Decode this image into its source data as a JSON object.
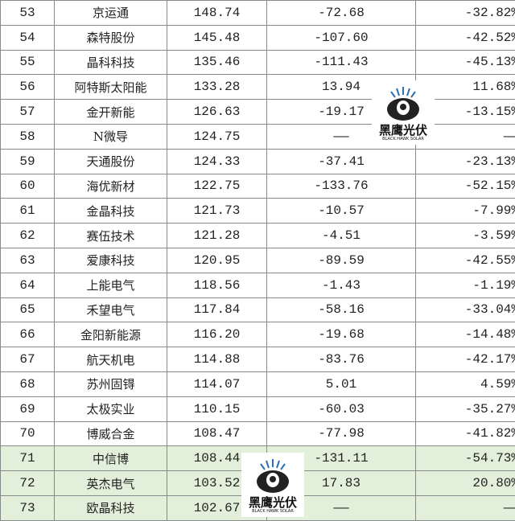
{
  "rows": [
    {
      "rank": "53",
      "name": "京运通",
      "value": "148.74",
      "change": "-72.68",
      "pct": "-32.82%"
    },
    {
      "rank": "54",
      "name": "森特股份",
      "value": "145.48",
      "change": "-107.60",
      "pct": "-42.52%"
    },
    {
      "rank": "55",
      "name": "晶科科技",
      "value": "135.46",
      "change": "-111.43",
      "pct": "-45.13%"
    },
    {
      "rank": "56",
      "name": "阿特斯太阳能",
      "value": "133.28",
      "change": "13.94",
      "pct": "11.68%"
    },
    {
      "rank": "57",
      "name": "金开新能",
      "value": "126.63",
      "change": "-19.17",
      "pct": "-13.15%"
    },
    {
      "rank": "58",
      "name": "N微导",
      "value": "124.75",
      "change": "——",
      "pct": "——"
    },
    {
      "rank": "59",
      "name": "天通股份",
      "value": "124.33",
      "change": "-37.41",
      "pct": "-23.13%"
    },
    {
      "rank": "60",
      "name": "海优新材",
      "value": "122.75",
      "change": "-133.76",
      "pct": "-52.15%"
    },
    {
      "rank": "61",
      "name": "金晶科技",
      "value": "121.73",
      "change": "-10.57",
      "pct": "-7.99%"
    },
    {
      "rank": "62",
      "name": "赛伍技术",
      "value": "121.28",
      "change": "-4.51",
      "pct": "-3.59%"
    },
    {
      "rank": "63",
      "name": "爱康科技",
      "value": "120.95",
      "change": "-89.59",
      "pct": "-42.55%"
    },
    {
      "rank": "64",
      "name": "上能电气",
      "value": "118.56",
      "change": "-1.43",
      "pct": "-1.19%"
    },
    {
      "rank": "65",
      "name": "禾望电气",
      "value": "117.84",
      "change": "-58.16",
      "pct": "-33.04%"
    },
    {
      "rank": "66",
      "name": "金阳新能源",
      "value": "116.20",
      "change": "-19.68",
      "pct": "-14.48%"
    },
    {
      "rank": "67",
      "name": "航天机电",
      "value": "114.88",
      "change": "-83.76",
      "pct": "-42.17%"
    },
    {
      "rank": "68",
      "name": "苏州固锝",
      "value": "114.07",
      "change": "5.01",
      "pct": "4.59%"
    },
    {
      "rank": "69",
      "name": "太极实业",
      "value": "110.15",
      "change": "-60.03",
      "pct": "-35.27%"
    },
    {
      "rank": "70",
      "name": "博威合金",
      "value": "108.47",
      "change": "-77.98",
      "pct": "-41.82%"
    },
    {
      "rank": "71",
      "name": "中信博",
      "value": "108.44",
      "change": "-131.11",
      "pct": "-54.73%",
      "highlight": true
    },
    {
      "rank": "72",
      "name": "英杰电气",
      "value": "103.52",
      "change": "17.83",
      "pct": "20.80%",
      "highlight": true
    },
    {
      "rank": "73",
      "name": "欧晶科技",
      "value": "102.67",
      "change": "——",
      "pct": "——",
      "highlight": true
    }
  ],
  "watermark": {
    "cn": "黑鹰光伏",
    "en": "BLACK HAWK SOLAR"
  },
  "colors": {
    "highlight": "#e2efda",
    "border": "#8a8a8a"
  }
}
